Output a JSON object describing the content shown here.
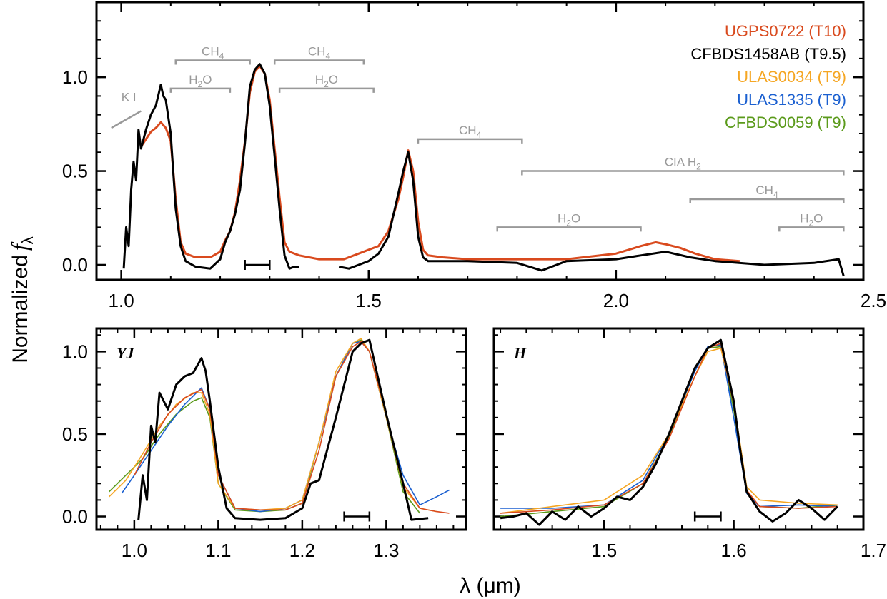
{
  "figure": {
    "ylabel": "Normalized",
    "ylabel_symbol": "f",
    "ylabel_subscript": "λ",
    "xlabel": "λ (μm)"
  },
  "colors": {
    "UGPS0722": "#d94a1e",
    "CFBDS1458AB": "#000000",
    "ULAS0034": "#f5a623",
    "ULAS1335": "#1a5fd0",
    "CFBDS0059": "#5a9a1a",
    "band": "#999999"
  },
  "chart_data": [
    {
      "type": "line",
      "panel": "full",
      "xlim": [
        0.95,
        2.5
      ],
      "ylim": [
        -0.08,
        1.4
      ],
      "xticks": [
        1.0,
        1.5,
        2.0,
        2.5
      ],
      "xtick_labels": [
        "1.0",
        "1.5",
        "2.0",
        "2.5"
      ],
      "yticks": [
        0.0,
        0.5,
        1.0
      ],
      "ytick_labels": [
        "0.0",
        "0.5",
        "1.0"
      ],
      "legend": {
        "position": "top-right",
        "entries": [
          {
            "name": "UGPS0722 (T10)",
            "color": "#d94a1e"
          },
          {
            "name": "CFBDS1458AB (T9.5)",
            "color": "#000000"
          },
          {
            "name": "ULAS0034 (T9)",
            "color": "#f5a623"
          },
          {
            "name": "ULAS1335 (T9)",
            "color": "#1a5fd0"
          },
          {
            "name": "CFBDS0059 (T9)",
            "color": "#5a9a1a"
          }
        ]
      },
      "annotations": [
        {
          "label": "K I",
          "kind": "line",
          "x": [
            0.98,
            1.04
          ],
          "y": [
            0.73,
            0.82
          ]
        },
        {
          "label": "CH",
          "sub": "4",
          "kind": "band",
          "x": [
            1.11,
            1.26
          ],
          "y": 1.09
        },
        {
          "label": "H",
          "sub": "2",
          "tail": "O",
          "kind": "band",
          "x": [
            1.1,
            1.22
          ],
          "y": 0.94
        },
        {
          "label": "CH",
          "sub": "4",
          "kind": "band",
          "x": [
            1.31,
            1.49
          ],
          "y": 1.09
        },
        {
          "label": "H",
          "sub": "2",
          "tail": "O",
          "kind": "band",
          "x": [
            1.32,
            1.51
          ],
          "y": 0.94
        },
        {
          "label": "CH",
          "sub": "4",
          "kind": "band",
          "x": [
            1.6,
            1.81
          ],
          "y": 0.67
        },
        {
          "label": "CIA H",
          "sub": "2",
          "kind": "band",
          "x": [
            1.81,
            2.46
          ],
          "y": 0.5
        },
        {
          "label": "CH",
          "sub": "4",
          "kind": "band",
          "x": [
            2.15,
            2.46
          ],
          "y": 0.35
        },
        {
          "label": "H",
          "sub": "2",
          "tail": "O",
          "kind": "band",
          "x": [
            1.76,
            2.05
          ],
          "y": 0.2
        },
        {
          "label": "H",
          "sub": "2",
          "tail": "O",
          "kind": "band",
          "x": [
            2.33,
            2.46
          ],
          "y": 0.2
        }
      ],
      "resolution_bar": {
        "x": [
          1.25,
          1.3
        ],
        "y": 0.0
      },
      "series": [
        {
          "name": "UGPS0722 (T10)",
          "color": "#d94a1e",
          "x": [
            1.04,
            1.05,
            1.06,
            1.07,
            1.08,
            1.09,
            1.1,
            1.11,
            1.12,
            1.13,
            1.15,
            1.18,
            1.2,
            1.21,
            1.22,
            1.23,
            1.24,
            1.25,
            1.26,
            1.27,
            1.28,
            1.29,
            1.3,
            1.31,
            1.32,
            1.33,
            1.34,
            1.36,
            1.4,
            1.45,
            1.48,
            1.5,
            1.52,
            1.54,
            1.56,
            1.57,
            1.58,
            1.59,
            1.6,
            1.61,
            1.62,
            1.65,
            1.7,
            1.8,
            1.9,
            2.0,
            2.05,
            2.08,
            2.1,
            2.13,
            2.16,
            2.2,
            2.25
          ],
          "y": [
            0.63,
            0.67,
            0.71,
            0.73,
            0.76,
            0.73,
            0.66,
            0.35,
            0.12,
            0.06,
            0.04,
            0.04,
            0.07,
            0.13,
            0.18,
            0.28,
            0.45,
            0.66,
            0.92,
            1.03,
            1.06,
            1.02,
            0.88,
            0.62,
            0.36,
            0.12,
            0.07,
            0.05,
            0.03,
            0.03,
            0.06,
            0.08,
            0.1,
            0.18,
            0.35,
            0.47,
            0.61,
            0.5,
            0.23,
            0.08,
            0.05,
            0.04,
            0.03,
            0.03,
            0.03,
            0.06,
            0.1,
            0.12,
            0.11,
            0.09,
            0.06,
            0.03,
            0.02
          ]
        },
        {
          "name": "CFBDS1458AB (T9.5)",
          "color": "#000000",
          "x": [
            1.005,
            1.01,
            1.015,
            1.02,
            1.025,
            1.03,
            1.035,
            1.04,
            1.045,
            1.05,
            1.06,
            1.07,
            1.08,
            1.085,
            1.09,
            1.1,
            1.11,
            1.12,
            1.13,
            1.15,
            1.18,
            1.2,
            1.21,
            1.22,
            1.23,
            1.24,
            1.25,
            1.26,
            1.27,
            1.28,
            1.29,
            1.3,
            1.31,
            1.32,
            1.33,
            1.34,
            1.35,
            1.36,
            1.38,
            1.44,
            1.46,
            1.48,
            1.5,
            1.52,
            1.54,
            1.56,
            1.57,
            1.58,
            1.59,
            1.6,
            1.61,
            1.62,
            1.64,
            1.7,
            1.8,
            1.85,
            1.9,
            2.0,
            2.05,
            2.1,
            2.15,
            2.2,
            2.3,
            2.4,
            2.45,
            2.46
          ],
          "y": [
            -0.02,
            0.2,
            0.1,
            0.4,
            0.55,
            0.45,
            0.72,
            0.62,
            0.67,
            0.72,
            0.8,
            0.85,
            0.96,
            0.9,
            0.88,
            0.7,
            0.3,
            0.1,
            0.02,
            -0.01,
            -0.02,
            0.03,
            0.12,
            0.18,
            0.27,
            0.4,
            0.65,
            0.95,
            1.04,
            1.07,
            1.02,
            0.85,
            0.58,
            0.3,
            0.05,
            -0.02,
            -0.01,
            -0.01,
            null,
            -0.01,
            -0.02,
            0.0,
            0.02,
            0.06,
            0.15,
            0.38,
            0.5,
            0.6,
            0.45,
            0.15,
            0.04,
            0.02,
            0.02,
            0.02,
            0.01,
            -0.03,
            0.02,
            0.03,
            0.05,
            0.07,
            0.04,
            0.02,
            0.0,
            0.01,
            0.03,
            -0.06
          ]
        }
      ]
    },
    {
      "type": "line",
      "panel": "YJ",
      "label": "YJ",
      "xlim": [
        0.955,
        1.395
      ],
      "ylim": [
        -0.08,
        1.14
      ],
      "xticks": [
        1.0,
        1.1,
        1.2,
        1.3
      ],
      "xtick_labels": [
        "1.0",
        "1.1",
        "1.2",
        "1.3"
      ],
      "yticks": [
        0.0,
        0.5,
        1.0
      ],
      "ytick_labels": [
        "0.0",
        "0.5",
        "1.0"
      ],
      "resolution_bar": {
        "x": [
          1.25,
          1.28
        ],
        "y": 0.0
      },
      "series": [
        {
          "name": "CFBDS0059 (T9)",
          "color": "#5a9a1a",
          "x": [
            0.97,
            0.99,
            1.01,
            1.03,
            1.05,
            1.07,
            1.08,
            1.09,
            1.1,
            1.12,
            1.15,
            1.18,
            1.2,
            1.22,
            1.24,
            1.26,
            1.27,
            1.28,
            1.3,
            1.32,
            1.34
          ],
          "y": [
            0.15,
            0.25,
            0.35,
            0.5,
            0.62,
            0.7,
            0.72,
            0.6,
            0.2,
            0.04,
            0.03,
            0.04,
            0.08,
            0.45,
            0.85,
            1.05,
            1.07,
            1.0,
            0.6,
            0.15,
            0.02
          ]
        },
        {
          "name": "ULAS1335 (T9)",
          "color": "#1a5fd0",
          "x": [
            0.985,
            1.0,
            1.02,
            1.04,
            1.06,
            1.08,
            1.09,
            1.1,
            1.12,
            1.15,
            1.18,
            1.2,
            1.22,
            1.24,
            1.26,
            1.27,
            1.28,
            1.3,
            1.32,
            1.34,
            1.36,
            1.375
          ],
          "y": [
            0.14,
            0.25,
            0.4,
            0.55,
            0.68,
            0.78,
            0.65,
            0.25,
            0.05,
            0.03,
            0.05,
            0.1,
            0.45,
            0.85,
            1.05,
            1.06,
            1.0,
            0.6,
            0.25,
            0.07,
            0.12,
            0.16
          ]
        },
        {
          "name": "ULAS0034 (T9)",
          "color": "#f5a623",
          "x": [
            0.97,
            0.99,
            1.01,
            1.03,
            1.05,
            1.07,
            1.08,
            1.09,
            1.1,
            1.12,
            1.15,
            1.18,
            1.2,
            1.22,
            1.24,
            1.26,
            1.27,
            1.28,
            1.3,
            1.32,
            1.34,
            1.36
          ],
          "y": [
            0.12,
            0.22,
            0.38,
            0.55,
            0.68,
            0.75,
            0.75,
            0.62,
            0.2,
            0.05,
            0.04,
            0.05,
            0.1,
            0.45,
            0.88,
            1.05,
            1.08,
            1.0,
            0.6,
            0.18,
            0.05,
            0.03
          ]
        },
        {
          "name": "UGPS0722 (T10)",
          "color": "#d94a1e",
          "x": [
            1.0,
            1.02,
            1.04,
            1.06,
            1.08,
            1.09,
            1.1,
            1.12,
            1.15,
            1.18,
            1.2,
            1.22,
            1.24,
            1.26,
            1.27,
            1.28,
            1.3,
            1.32,
            1.34,
            1.36,
            1.375
          ],
          "y": [
            0.25,
            0.45,
            0.62,
            0.72,
            0.77,
            0.65,
            0.25,
            0.05,
            0.04,
            0.04,
            0.08,
            0.4,
            0.85,
            1.03,
            1.06,
            1.0,
            0.62,
            0.2,
            0.05,
            0.03,
            0.02
          ]
        },
        {
          "name": "CFBDS1458AB (T9.5)",
          "color": "#000000",
          "x": [
            1.005,
            1.01,
            1.015,
            1.02,
            1.025,
            1.03,
            1.04,
            1.05,
            1.06,
            1.07,
            1.08,
            1.085,
            1.09,
            1.1,
            1.11,
            1.12,
            1.15,
            1.18,
            1.2,
            1.21,
            1.22,
            1.24,
            1.26,
            1.27,
            1.28,
            1.3,
            1.32,
            1.33,
            1.35
          ],
          "y": [
            -0.02,
            0.25,
            0.1,
            0.55,
            0.45,
            0.75,
            0.65,
            0.8,
            0.85,
            0.87,
            0.96,
            0.88,
            0.7,
            0.3,
            0.05,
            -0.01,
            -0.02,
            -0.01,
            0.05,
            0.2,
            0.22,
            0.6,
            1.0,
            1.05,
            1.07,
            0.62,
            0.2,
            -0.02,
            -0.01
          ]
        }
      ]
    },
    {
      "type": "line",
      "panel": "H",
      "label": "H",
      "xlim": [
        1.415,
        1.7
      ],
      "ylim": [
        -0.08,
        1.14
      ],
      "xticks": [
        1.5,
        1.6,
        1.7
      ],
      "xtick_labels": [
        "1.5",
        "1.6",
        "1.7"
      ],
      "yticks": [
        0.0,
        0.5,
        1.0
      ],
      "resolution_bar": {
        "x": [
          1.57,
          1.59
        ],
        "y": 0.0
      },
      "series": [
        {
          "name": "CFBDS0059 (T9)",
          "color": "#5a9a1a",
          "x": [
            1.42,
            1.46,
            1.5,
            1.53,
            1.55,
            1.57,
            1.58,
            1.59,
            1.6,
            1.61,
            1.62,
            1.65,
            1.68
          ],
          "y": [
            0.0,
            0.03,
            0.06,
            0.2,
            0.48,
            0.85,
            1.02,
            1.03,
            0.65,
            0.15,
            0.06,
            0.05,
            0.07
          ]
        },
        {
          "name": "ULAS1335 (T9)",
          "color": "#1a5fd0",
          "x": [
            1.42,
            1.46,
            1.5,
            1.53,
            1.55,
            1.57,
            1.58,
            1.59,
            1.6,
            1.61,
            1.62,
            1.65,
            1.68
          ],
          "y": [
            0.05,
            0.05,
            0.07,
            0.22,
            0.5,
            0.88,
            1.03,
            1.04,
            0.6,
            0.14,
            0.06,
            0.07,
            0.06
          ]
        },
        {
          "name": "ULAS0034 (T9)",
          "color": "#f5a623",
          "x": [
            1.42,
            1.46,
            1.5,
            1.53,
            1.55,
            1.57,
            1.58,
            1.59,
            1.6,
            1.61,
            1.62,
            1.65,
            1.68
          ],
          "y": [
            0.02,
            0.06,
            0.1,
            0.25,
            0.5,
            0.85,
            1.0,
            1.02,
            0.7,
            0.18,
            0.1,
            0.08,
            0.07
          ]
        },
        {
          "name": "UGPS0722 (T10)",
          "color": "#d94a1e",
          "x": [
            1.42,
            1.46,
            1.5,
            1.53,
            1.55,
            1.57,
            1.58,
            1.59,
            1.6,
            1.61,
            1.62,
            1.65,
            1.68
          ],
          "y": [
            0.02,
            0.04,
            0.07,
            0.2,
            0.47,
            0.85,
            1.02,
            1.05,
            0.68,
            0.16,
            0.06,
            0.05,
            0.06
          ]
        },
        {
          "name": "CFBDS1458AB (T9.5)",
          "color": "#000000",
          "x": [
            1.42,
            1.43,
            1.44,
            1.45,
            1.46,
            1.47,
            1.48,
            1.49,
            1.5,
            1.51,
            1.52,
            1.53,
            1.54,
            1.55,
            1.56,
            1.57,
            1.58,
            1.59,
            1.6,
            1.605,
            1.61,
            1.62,
            1.63,
            1.64,
            1.65,
            1.66,
            1.67,
            1.68
          ],
          "y": [
            -0.01,
            0.0,
            0.02,
            -0.05,
            0.03,
            -0.02,
            0.06,
            0.0,
            0.05,
            0.12,
            0.1,
            0.18,
            0.32,
            0.5,
            0.7,
            0.9,
            1.02,
            1.07,
            0.7,
            0.4,
            0.15,
            0.03,
            -0.03,
            0.02,
            0.1,
            0.05,
            -0.02,
            0.06
          ]
        }
      ]
    }
  ]
}
